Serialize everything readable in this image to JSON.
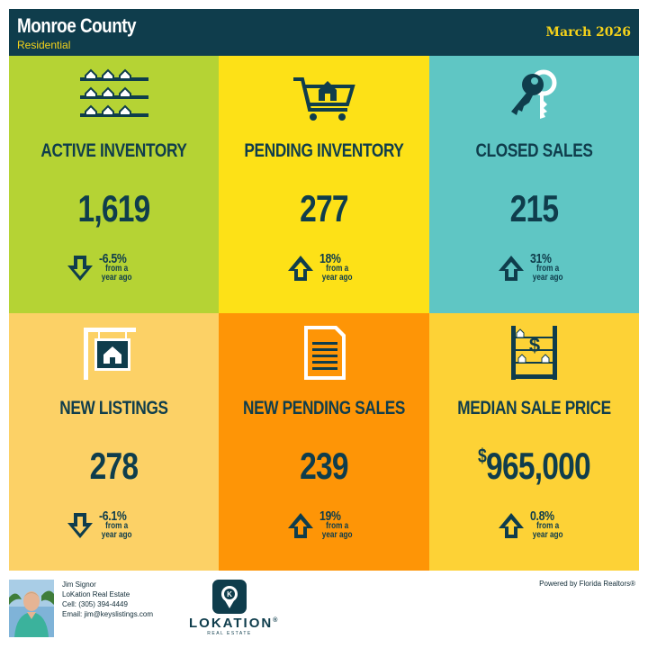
{
  "header": {
    "county": "Monroe County",
    "category": "Residential",
    "period": "March 2026"
  },
  "colors": {
    "navy": "#0f3d4c",
    "yellow_text": "#f5d21a",
    "green": "#b5d334",
    "yellow": "#fde117",
    "teal": "#5fc6c4",
    "light_orange": "#fcd166",
    "orange": "#fe9506",
    "gold": "#fdd236"
  },
  "tiles": [
    {
      "icon": "houses-grid-icon",
      "label": "ACTIVE INVENTORY",
      "value": "1,619",
      "change": "-6.5%",
      "direction": "down",
      "from": "from a",
      "ago": "year ago"
    },
    {
      "icon": "shopping-cart-house-icon",
      "label": "PENDING INVENTORY",
      "value": "277",
      "change": "18%",
      "direction": "up",
      "from": "from a",
      "ago": "year ago"
    },
    {
      "icon": "keys-icon",
      "label": "CLOSED SALES",
      "value": "215",
      "change": "31%",
      "direction": "up",
      "from": "from a",
      "ago": "year ago"
    },
    {
      "icon": "hanging-sign-house-icon",
      "label": "NEW LISTINGS",
      "value": "278",
      "change": "-6.1%",
      "direction": "down",
      "from": "from a",
      "ago": "year ago"
    },
    {
      "icon": "document-icon",
      "label": "NEW PENDING SALES",
      "value": "239",
      "change": "19%",
      "direction": "up",
      "from": "from a",
      "ago": "year ago"
    },
    {
      "icon": "abacus-dollar-icon",
      "label": "MEDIAN SALE PRICE",
      "value_prefix": "$",
      "value": "965,000",
      "change": "0.8%",
      "direction": "up",
      "from": "from a",
      "ago": "year ago"
    }
  ],
  "footer": {
    "agent_name": "Jim Signor",
    "company": "LoKation Real Estate",
    "cell": "Cell: (305) 394-4449",
    "email": "Email: jim@keyslistings.com",
    "logo_text": "LOKATION",
    "logo_registered": "®",
    "logo_sub": "REAL ESTATE",
    "powered": "Powered by Florida Realtors®"
  }
}
